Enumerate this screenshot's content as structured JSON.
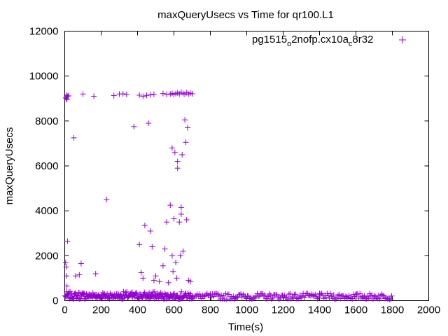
{
  "chart_data": {
    "type": "scatter",
    "title": "maxQueryUsecs vs Time for qr100.L1",
    "xlabel": "Time(s)",
    "ylabel": "maxQueryUsecs",
    "xlim": [
      0,
      2000
    ],
    "ylim": [
      0,
      12000
    ],
    "xticks": [
      0,
      200,
      400,
      600,
      800,
      1000,
      1200,
      1400,
      1600,
      1800,
      2000
    ],
    "yticks": [
      0,
      2000,
      4000,
      6000,
      8000,
      10000,
      12000
    ],
    "grid": false,
    "legend_position": "top-right",
    "legend": {
      "parts": [
        "pg1515",
        "o",
        "2nofp.cx10a",
        "c",
        "8r32"
      ]
    },
    "series": [
      {
        "marker": "+",
        "color": "#9400d3",
        "high_points": [
          [
            5,
            9050
          ],
          [
            8,
            9000
          ],
          [
            10,
            9150
          ],
          [
            12,
            8950
          ],
          [
            15,
            9100
          ],
          [
            20,
            9120
          ],
          [
            100,
            9200
          ],
          [
            160,
            9100
          ],
          [
            270,
            9130
          ],
          [
            300,
            9200
          ],
          [
            320,
            9210
          ],
          [
            340,
            9180
          ],
          [
            410,
            9150
          ],
          [
            430,
            9100
          ],
          [
            450,
            9140
          ],
          [
            470,
            9160
          ],
          [
            490,
            9190
          ],
          [
            540,
            9220
          ],
          [
            560,
            9180
          ],
          [
            580,
            9200
          ],
          [
            590,
            9230
          ],
          [
            600,
            9170
          ],
          [
            610,
            9220
          ],
          [
            620,
            9250
          ],
          [
            630,
            9200
          ],
          [
            640,
            9280
          ],
          [
            650,
            9220
          ],
          [
            660,
            9190
          ],
          [
            670,
            9260
          ],
          [
            680,
            9200
          ],
          [
            690,
            9240
          ],
          [
            700,
            9210
          ]
        ],
        "mid_points": [
          [
            5,
            1700
          ],
          [
            8,
            1500
          ],
          [
            10,
            1100
          ],
          [
            12,
            650
          ],
          [
            15,
            2650
          ],
          [
            20,
            300
          ],
          [
            50,
            7250
          ],
          [
            60,
            1100
          ],
          [
            80,
            1150
          ],
          [
            90,
            1650
          ],
          [
            170,
            1200
          ],
          [
            230,
            4500
          ],
          [
            380,
            7750
          ],
          [
            410,
            2500
          ],
          [
            420,
            1250
          ],
          [
            430,
            1000
          ],
          [
            440,
            3350
          ],
          [
            460,
            7900
          ],
          [
            470,
            3100
          ],
          [
            480,
            2400
          ],
          [
            490,
            900
          ],
          [
            500,
            1100
          ],
          [
            520,
            850
          ],
          [
            540,
            1550
          ],
          [
            550,
            2300
          ],
          [
            560,
            3500
          ],
          [
            570,
            800
          ],
          [
            580,
            4250
          ],
          [
            590,
            6800
          ],
          [
            590,
            2000
          ],
          [
            595,
            1300
          ],
          [
            600,
            3650
          ],
          [
            605,
            6600
          ],
          [
            610,
            1700
          ],
          [
            615,
            1000
          ],
          [
            620,
            5900
          ],
          [
            620,
            6200
          ],
          [
            630,
            3500
          ],
          [
            635,
            2000
          ],
          [
            640,
            4150
          ],
          [
            640,
            3850
          ],
          [
            645,
            6500
          ],
          [
            650,
            2200
          ],
          [
            660,
            8050
          ],
          [
            665,
            7050
          ],
          [
            670,
            3600
          ],
          [
            675,
            7700
          ],
          [
            680,
            900
          ],
          [
            690,
            850
          ]
        ]
      }
    ]
  }
}
